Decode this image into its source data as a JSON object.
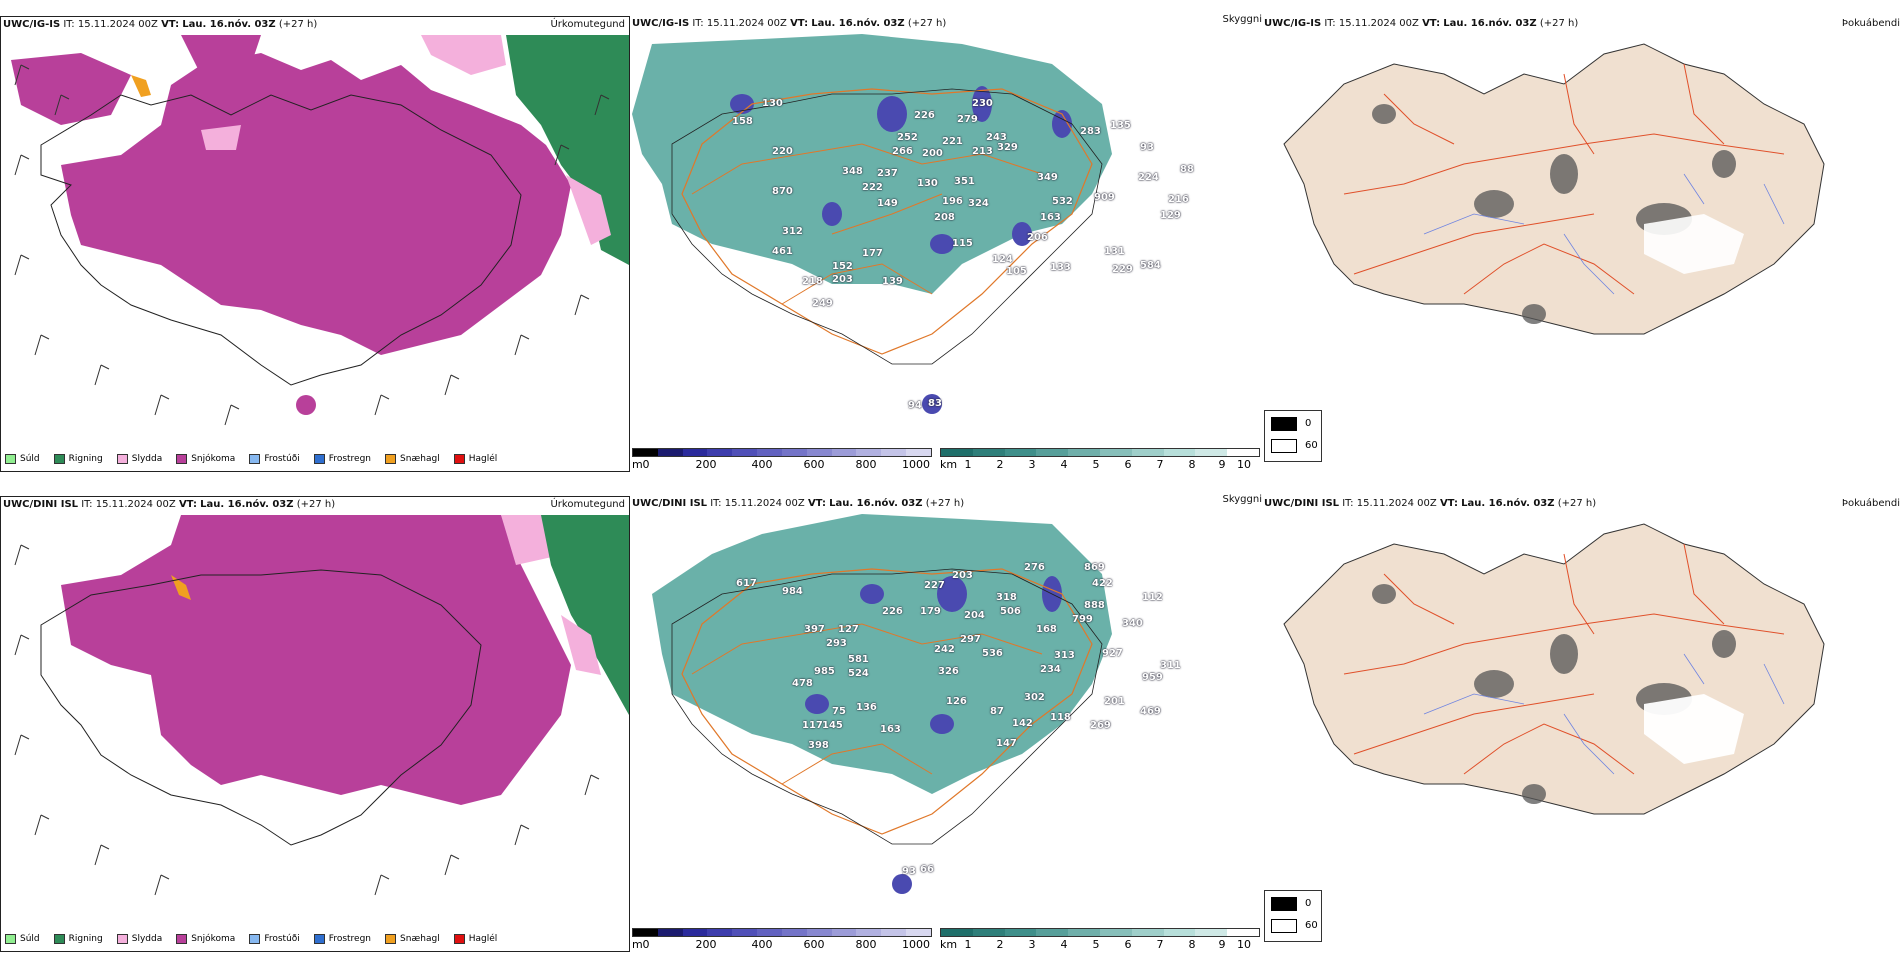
{
  "rows": [
    {
      "model": "UWC/IG-IS",
      "it_label": "IT:",
      "it_value": "15.11.2024 00Z",
      "vt_label": "VT:",
      "vt_value": "Lau. 16.nóv. 03Z",
      "lead": "(+27 h)",
      "cloud_numbers": [
        "158",
        "130",
        "220",
        "870",
        "312",
        "461",
        "218",
        "249",
        "152",
        "203",
        "177",
        "139",
        "348",
        "237",
        "222",
        "149",
        "266",
        "252",
        "200",
        "221",
        "226",
        "130",
        "196",
        "208",
        "115",
        "279",
        "230",
        "213",
        "329",
        "243",
        "124",
        "105",
        "133",
        "206",
        "163",
        "349",
        "532",
        "909",
        "283",
        "135",
        "93",
        "88",
        "224",
        "216",
        "129",
        "131",
        "229",
        "584",
        "94",
        "83",
        "351",
        "324"
      ]
    },
    {
      "model": "UWC/DINI ISL",
      "it_label": "IT:",
      "it_value": "15.11.2024 00Z",
      "vt_label": "VT:",
      "vt_value": "Lau. 16.nóv. 03Z",
      "lead": "(+27 h)",
      "cloud_numbers": [
        "617",
        "984",
        "397",
        "127",
        "293",
        "581",
        "985",
        "524",
        "478",
        "117",
        "145",
        "136",
        "75",
        "163",
        "398",
        "226",
        "179",
        "242",
        "326",
        "203",
        "227",
        "204",
        "297",
        "506",
        "318",
        "276",
        "126",
        "87",
        "142",
        "147",
        "536",
        "118",
        "302",
        "168",
        "313",
        "234",
        "869",
        "422",
        "888",
        "799",
        "340",
        "927",
        "112",
        "311",
        "959",
        "469",
        "201",
        "269",
        "93",
        "66"
      ]
    }
  ],
  "panels": {
    "precip_title": "Úrkomutegund",
    "cloud_title": "Skyggni",
    "fog_title": "Þokuábendi"
  },
  "precip_legend": [
    {
      "label": "Súld",
      "color": "#90ee90"
    },
    {
      "label": "Rigning",
      "color": "#2e8b57"
    },
    {
      "label": "Slydda",
      "color": "#f4b0dc"
    },
    {
      "label": "Snjókoma",
      "color": "#b8409a"
    },
    {
      "label": "Frostúði",
      "color": "#87b8f0"
    },
    {
      "label": "Frostregn",
      "color": "#2f6fcf"
    },
    {
      "label": "Snæhagl",
      "color": "#f0a020"
    },
    {
      "label": "Haglél",
      "color": "#e01010"
    }
  ],
  "height_bar": {
    "unit": "m",
    "ticks": [
      "0",
      "200",
      "400",
      "600",
      "800",
      "1000"
    ],
    "colors": [
      "#000000",
      "#1a1a6e",
      "#2a2a9c",
      "#3d3dad",
      "#5050b8",
      "#6262c0",
      "#7474c8",
      "#8888d0",
      "#9c9cd8",
      "#b0b0e0",
      "#c4c4e8",
      "#d8d8f0"
    ]
  },
  "vis_bar": {
    "unit": "km",
    "ticks": [
      "1",
      "2",
      "3",
      "4",
      "5",
      "6",
      "7",
      "8",
      "9",
      "10"
    ],
    "colors": [
      "#1f6f6a",
      "#2f7f7a",
      "#3f8f8a",
      "#579f9a",
      "#6fafaa",
      "#87bfba",
      "#9fcfca",
      "#b7dfda",
      "#cfe9e6",
      "#ffffff"
    ]
  },
  "fog_legend": {
    "top": "0",
    "bottom": "60"
  }
}
